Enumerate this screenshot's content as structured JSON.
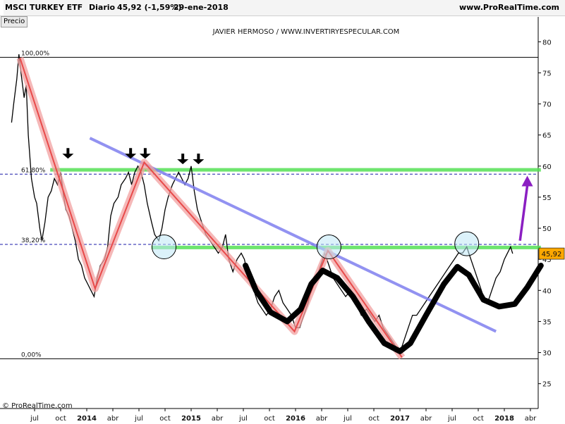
{
  "header": {
    "instrument": "MSCI TURKEY ETF",
    "frequency": "Diario",
    "last_value": "45,92 (-1,59%)",
    "date": "29-ene-2018",
    "site": "www.ProRealTime.com",
    "price_tab": "Precio"
  },
  "chart_data": {
    "type": "line",
    "annotation": "JAVIER HERMOSO / WWW.INVERTIRYESPECULAR.COM",
    "watermark": "© ProRealTime.com",
    "ylim": [
      21,
      84
    ],
    "y_ticks": [
      25,
      30,
      35,
      40,
      45,
      50,
      55,
      60,
      65,
      70,
      75,
      80
    ],
    "x_ticks": [
      {
        "label": "jul",
        "x": 2013.5,
        "bold": false
      },
      {
        "label": "oct",
        "x": 2013.75,
        "bold": false
      },
      {
        "label": "2014",
        "x": 2014.0,
        "bold": true
      },
      {
        "label": "abr",
        "x": 2014.25,
        "bold": false
      },
      {
        "label": "jul",
        "x": 2014.5,
        "bold": false
      },
      {
        "label": "oct",
        "x": 2014.75,
        "bold": false
      },
      {
        "label": "2015",
        "x": 2015.0,
        "bold": true
      },
      {
        "label": "abr",
        "x": 2015.25,
        "bold": false
      },
      {
        "label": "jul",
        "x": 2015.5,
        "bold": false
      },
      {
        "label": "oct",
        "x": 2015.75,
        "bold": false
      },
      {
        "label": "2016",
        "x": 2016.0,
        "bold": true
      },
      {
        "label": "abr",
        "x": 2016.25,
        "bold": false
      },
      {
        "label": "jul",
        "x": 2016.5,
        "bold": false
      },
      {
        "label": "oct",
        "x": 2016.75,
        "bold": false
      },
      {
        "label": "2017",
        "x": 2017.0,
        "bold": true
      },
      {
        "label": "abr",
        "x": 2017.25,
        "bold": false
      },
      {
        "label": "jul",
        "x": 2017.5,
        "bold": false
      },
      {
        "label": "oct",
        "x": 2017.75,
        "bold": false
      },
      {
        "label": "2018",
        "x": 2018.0,
        "bold": true
      },
      {
        "label": "abr",
        "x": 2018.25,
        "bold": false
      }
    ],
    "price_series": {
      "color": "#000000",
      "points": [
        [
          2013.28,
          67
        ],
        [
          2013.3,
          70
        ],
        [
          2013.33,
          74
        ],
        [
          2013.35,
          78
        ],
        [
          2013.37,
          75
        ],
        [
          2013.4,
          71
        ],
        [
          2013.42,
          73
        ],
        [
          2013.44,
          65
        ],
        [
          2013.47,
          58
        ],
        [
          2013.5,
          55
        ],
        [
          2013.52,
          54
        ],
        [
          2013.55,
          50
        ],
        [
          2013.57,
          48
        ],
        [
          2013.6,
          51
        ],
        [
          2013.63,
          55
        ],
        [
          2013.66,
          56
        ],
        [
          2013.69,
          58
        ],
        [
          2013.72,
          57
        ],
        [
          2013.75,
          59
        ],
        [
          2013.78,
          55
        ],
        [
          2013.8,
          53
        ],
        [
          2013.83,
          52
        ],
        [
          2013.86,
          50
        ],
        [
          2013.89,
          48
        ],
        [
          2013.92,
          45
        ],
        [
          2013.95,
          44
        ],
        [
          2013.98,
          42
        ],
        [
          2014.01,
          41
        ],
        [
          2014.04,
          40
        ],
        [
          2014.07,
          39
        ],
        [
          2014.1,
          42
        ],
        [
          2014.13,
          44
        ],
        [
          2014.17,
          45
        ],
        [
          2014.2,
          47
        ],
        [
          2014.23,
          52
        ],
        [
          2014.26,
          54
        ],
        [
          2014.3,
          55
        ],
        [
          2014.33,
          57
        ],
        [
          2014.37,
          58
        ],
        [
          2014.4,
          59
        ],
        [
          2014.43,
          57
        ],
        [
          2014.46,
          59
        ],
        [
          2014.49,
          60
        ],
        [
          2014.52,
          59
        ],
        [
          2014.55,
          57
        ],
        [
          2014.58,
          54
        ],
        [
          2014.62,
          51
        ],
        [
          2014.65,
          49
        ],
        [
          2014.69,
          48
        ],
        [
          2014.72,
          50
        ],
        [
          2014.75,
          53
        ],
        [
          2014.78,
          55
        ],
        [
          2014.82,
          57
        ],
        [
          2014.85,
          58
        ],
        [
          2014.88,
          59
        ],
        [
          2014.91,
          58
        ],
        [
          2014.94,
          57
        ],
        [
          2014.97,
          58
        ],
        [
          2015.0,
          60
        ],
        [
          2015.03,
          56
        ],
        [
          2015.06,
          53
        ],
        [
          2015.1,
          51
        ],
        [
          2015.14,
          49
        ],
        [
          2015.18,
          48
        ],
        [
          2015.22,
          47
        ],
        [
          2015.26,
          46
        ],
        [
          2015.3,
          47
        ],
        [
          2015.33,
          49
        ],
        [
          2015.36,
          45
        ],
        [
          2015.4,
          43
        ],
        [
          2015.44,
          45
        ],
        [
          2015.48,
          46
        ],
        [
          2015.51,
          45
        ],
        [
          2015.55,
          42
        ],
        [
          2015.6,
          40
        ],
        [
          2015.64,
          38
        ],
        [
          2015.68,
          37
        ],
        [
          2015.72,
          36
        ],
        [
          2015.76,
          37
        ],
        [
          2015.8,
          39
        ],
        [
          2015.84,
          40
        ],
        [
          2015.88,
          38
        ],
        [
          2015.92,
          37
        ],
        [
          2015.96,
          36
        ],
        [
          2016.0,
          34
        ],
        [
          2016.04,
          34
        ],
        [
          2016.08,
          36
        ],
        [
          2016.12,
          38
        ],
        [
          2016.16,
          41
        ],
        [
          2016.2,
          42
        ],
        [
          2016.24,
          44
        ],
        [
          2016.28,
          46
        ],
        [
          2016.32,
          44
        ],
        [
          2016.36,
          42
        ],
        [
          2016.4,
          41
        ],
        [
          2016.44,
          40
        ],
        [
          2016.48,
          39
        ],
        [
          2016.53,
          40
        ],
        [
          2016.58,
          38
        ],
        [
          2016.63,
          36
        ],
        [
          2016.68,
          37
        ],
        [
          2016.72,
          36
        ],
        [
          2016.76,
          35
        ],
        [
          2016.8,
          36
        ],
        [
          2016.84,
          34
        ],
        [
          2016.88,
          33
        ],
        [
          2016.92,
          32
        ],
        [
          2016.96,
          31
        ],
        [
          2017.0,
          30
        ],
        [
          2017.04,
          32
        ],
        [
          2017.08,
          34
        ],
        [
          2017.12,
          36
        ],
        [
          2017.16,
          36
        ],
        [
          2017.2,
          37
        ],
        [
          2017.24,
          38
        ],
        [
          2017.28,
          39
        ],
        [
          2017.32,
          40
        ],
        [
          2017.36,
          41
        ],
        [
          2017.4,
          42
        ],
        [
          2017.44,
          43
        ],
        [
          2017.48,
          44
        ],
        [
          2017.52,
          45
        ],
        [
          2017.56,
          46
        ],
        [
          2017.6,
          46
        ],
        [
          2017.64,
          47
        ],
        [
          2017.68,
          45
        ],
        [
          2017.72,
          43
        ],
        [
          2017.76,
          41
        ],
        [
          2017.8,
          39
        ],
        [
          2017.84,
          38
        ],
        [
          2017.88,
          40
        ],
        [
          2017.92,
          42
        ],
        [
          2017.96,
          43
        ],
        [
          2018.0,
          45
        ],
        [
          2018.03,
          46
        ],
        [
          2018.06,
          47
        ],
        [
          2018.08,
          45.92
        ]
      ]
    },
    "horizontal_lines": [
      {
        "name": "high",
        "y": 77.5,
        "color": "#000000",
        "style": "solid"
      },
      {
        "name": "low",
        "y": 29,
        "color": "#000000",
        "style": "solid"
      },
      {
        "name": "fib-61.8",
        "y": 58.7,
        "color": "#1a1aa8",
        "style": "dashed"
      },
      {
        "name": "fib-38.2",
        "y": 47.4,
        "color": "#1a1aa8",
        "style": "dashed"
      }
    ],
    "fib_labels": [
      {
        "label": "100,00%",
        "y": 77.5
      },
      {
        "label": "61,80%",
        "y": 58.7
      },
      {
        "label": "38,20%",
        "y": 47.4
      },
      {
        "label": "0,00%",
        "y": 29
      }
    ],
    "green_levels": [
      {
        "x1": 2013.65,
        "x2": 2018.35,
        "y": 59.4
      },
      {
        "x1": 2014.62,
        "x2": 2018.35,
        "y": 46.9
      }
    ],
    "trendline": {
      "color": "#7f7fef",
      "points": [
        [
          2014.03,
          64.5
        ],
        [
          2017.92,
          33.4
        ]
      ]
    },
    "zigzag": {
      "color": "#e84a4a",
      "points": [
        [
          2013.36,
          77.4
        ],
        [
          2014.08,
          40.3
        ],
        [
          2014.55,
          60.6
        ],
        [
          2015.99,
          33.4
        ],
        [
          2016.31,
          46.4
        ],
        [
          2017.02,
          29.2
        ]
      ]
    },
    "cycle_curve": {
      "color": "#000000",
      "points": [
        [
          2015.52,
          44.0
        ],
        [
          2015.62,
          40.0
        ],
        [
          2015.76,
          36.5
        ],
        [
          2015.92,
          35.0
        ],
        [
          2016.05,
          37.0
        ],
        [
          2016.15,
          41.0
        ],
        [
          2016.26,
          43.2
        ],
        [
          2016.4,
          42.0
        ],
        [
          2016.55,
          39.0
        ],
        [
          2016.7,
          35.0
        ],
        [
          2016.85,
          31.5
        ],
        [
          2017.0,
          30.2
        ],
        [
          2017.1,
          31.5
        ],
        [
          2017.25,
          36.0
        ],
        [
          2017.42,
          41.0
        ],
        [
          2017.55,
          43.8
        ],
        [
          2017.66,
          42.5
        ],
        [
          2017.8,
          38.5
        ],
        [
          2017.95,
          37.4
        ],
        [
          2018.1,
          37.8
        ],
        [
          2018.22,
          40.5
        ],
        [
          2018.35,
          44.0
        ]
      ]
    },
    "circles": [
      [
        2014.74,
        47.0
      ],
      [
        2016.32,
        47.0
      ],
      [
        2017.64,
        47.5
      ]
    ],
    "down_arrows": [
      [
        2013.82,
        61.2
      ],
      [
        2014.42,
        61.2
      ],
      [
        2014.56,
        61.2
      ],
      [
        2014.92,
        60.3
      ],
      [
        2015.07,
        60.3
      ]
    ],
    "up_arrow": {
      "color": "#8b1fc2",
      "from": [
        2018.15,
        48.0
      ],
      "to": [
        2018.22,
        58.0
      ]
    },
    "last_price": {
      "label": "45,92",
      "y": 45.92,
      "color": "#ffa800"
    }
  }
}
